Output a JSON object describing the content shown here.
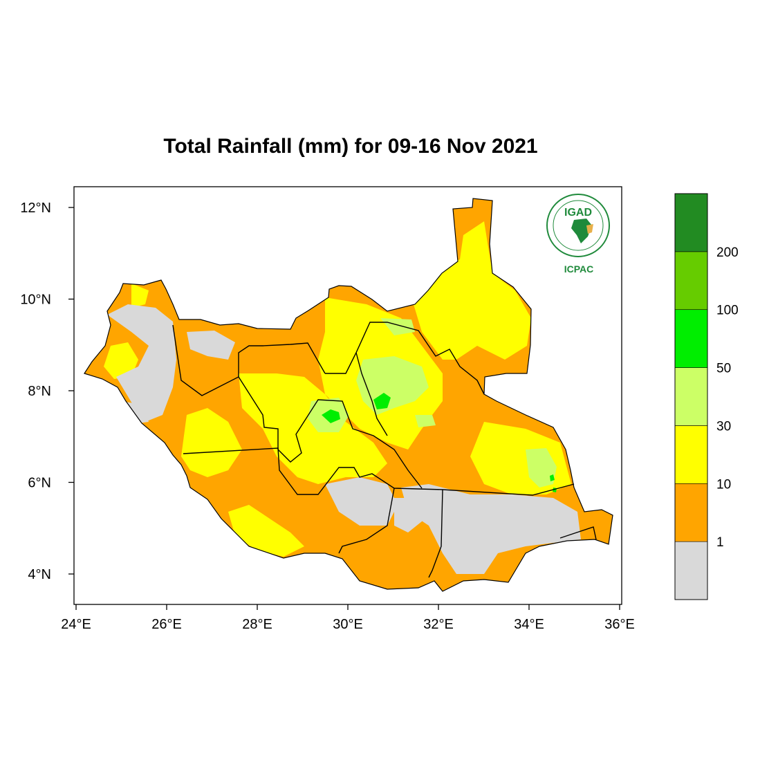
{
  "map": {
    "title": "Total Rainfall (mm) for 09-16 Nov 2021",
    "lon_range": [
      24,
      36
    ],
    "lat_range": [
      3.35,
      12.5
    ],
    "x_ticks": [
      {
        "value": 24,
        "label": "24°E"
      },
      {
        "value": 26,
        "label": "26°E"
      },
      {
        "value": 28,
        "label": "28°E"
      },
      {
        "value": 30,
        "label": "30°E"
      },
      {
        "value": 32,
        "label": "32°E"
      },
      {
        "value": 34,
        "label": "34°E"
      },
      {
        "value": 36,
        "label": "36°E"
      }
    ],
    "y_ticks": [
      {
        "value": 4,
        "label": "4°N"
      },
      {
        "value": 6,
        "label": "6°N"
      },
      {
        "value": 8,
        "label": "8°N"
      },
      {
        "value": 10,
        "label": "10°N"
      },
      {
        "value": 12,
        "label": "12°N"
      }
    ]
  },
  "colorbar": {
    "bins": [
      {
        "color": "#d9d9d9"
      },
      {
        "color": "#ffa500"
      },
      {
        "color": "#ffff00"
      },
      {
        "color": "#ccff66"
      },
      {
        "color": "#00ee00"
      },
      {
        "color": "#66cc00"
      },
      {
        "color": "#228b22"
      }
    ],
    "labels": [
      "1",
      "10",
      "30",
      "50",
      "100",
      "200"
    ]
  },
  "logo": {
    "name": "IGAD",
    "org": "ICPAC"
  }
}
